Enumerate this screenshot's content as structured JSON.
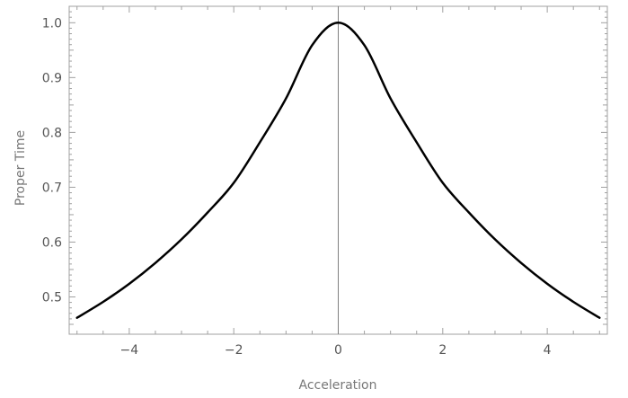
{
  "chart_data": {
    "type": "line",
    "title": "",
    "xlabel": "Acceleration",
    "ylabel": "Proper Time",
    "xlim": [
      -5.15,
      5.15
    ],
    "ylim": [
      0.432,
      1.03
    ],
    "x_ticks": [
      -4,
      -2,
      0,
      2,
      4
    ],
    "x_tick_labels": [
      "−4",
      "−2",
      "0",
      "2",
      "4"
    ],
    "y_ticks": [
      0.5,
      0.6,
      0.7,
      0.8,
      0.9,
      1.0
    ],
    "y_tick_labels": [
      "0.5",
      "0.6",
      "0.7",
      "0.8",
      "0.9",
      "1.0"
    ],
    "grid": false,
    "frame": true,
    "colors": {
      "series": "#000000",
      "frame": "#a0a0a0",
      "zero_line": "#808080",
      "text": "#555555"
    },
    "series": [
      {
        "x": [
          -5,
          -4.5,
          -4,
          -3.5,
          -3,
          -2.5,
          -2,
          -1.5,
          -1,
          -0.5,
          0,
          0.5,
          1,
          1.5,
          2,
          2.5,
          3,
          3.5,
          4,
          4.5,
          5
        ],
        "y": [
          0.462,
          0.491,
          0.524,
          0.562,
          0.605,
          0.654,
          0.708,
          0.782,
          0.862,
          0.959,
          1.0,
          0.959,
          0.862,
          0.782,
          0.708,
          0.654,
          0.605,
          0.562,
          0.524,
          0.491,
          0.462
        ]
      }
    ]
  }
}
